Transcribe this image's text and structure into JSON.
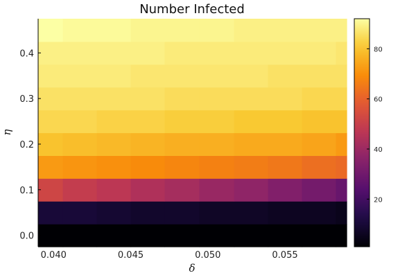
{
  "chart_data": {
    "type": "heatmap",
    "title": "Number Infected",
    "xlabel": "δ",
    "ylabel": "η",
    "x": [
      0.0395,
      0.0417,
      0.0439,
      0.0461,
      0.0483,
      0.0506,
      0.0528,
      0.055,
      0.0572,
      0.0594
    ],
    "y": [
      0.0,
      0.05,
      0.1,
      0.15,
      0.2,
      0.25,
      0.3,
      0.35,
      0.4,
      0.45
    ],
    "xlim": [
      0.039,
      0.059
    ],
    "ylim": [
      -0.025,
      0.475
    ],
    "x_ticks": [
      {
        "value": 0.04,
        "label": "0.040"
      },
      {
        "value": 0.045,
        "label": "0.045"
      },
      {
        "value": 0.05,
        "label": "0.050"
      },
      {
        "value": 0.055,
        "label": "0.055"
      }
    ],
    "y_ticks": [
      {
        "value": 0.0,
        "label": "0.0"
      },
      {
        "value": 0.1,
        "label": "0.1"
      },
      {
        "value": 0.2,
        "label": "0.2"
      },
      {
        "value": 0.3,
        "label": "0.3"
      },
      {
        "value": 0.4,
        "label": "0.4"
      }
    ],
    "z": [
      [
        1,
        1,
        1,
        1,
        1,
        1,
        1,
        1,
        1,
        1
      ],
      [
        10,
        10,
        9,
        8,
        8,
        7,
        7,
        6,
        6,
        5
      ],
      [
        52,
        49,
        47,
        44,
        42,
        39,
        37,
        34,
        31,
        28
      ],
      [
        72,
        71,
        70,
        69,
        68,
        67,
        66,
        65,
        63,
        62
      ],
      [
        80,
        79,
        78,
        77,
        76,
        76,
        75,
        75,
        74,
        72
      ],
      [
        84,
        84,
        83,
        83,
        82,
        82,
        81,
        81,
        80,
        80
      ],
      [
        86,
        86,
        86,
        86,
        85,
        85,
        85,
        85,
        84,
        84
      ],
      [
        88,
        88,
        88,
        87,
        87,
        87,
        87,
        86,
        86,
        86
      ],
      [
        89,
        89,
        89,
        89,
        88,
        88,
        88,
        88,
        88,
        87
      ],
      [
        92,
        91,
        91,
        90,
        90,
        90,
        89,
        89,
        89,
        89
      ]
    ],
    "colorbar": {
      "colormap": "inferno",
      "range": [
        1,
        92
      ],
      "ticks": [
        {
          "value": 20,
          "label": "20"
        },
        {
          "value": 40,
          "label": "40"
        },
        {
          "value": 60,
          "label": "60"
        },
        {
          "value": 80,
          "label": "80"
        }
      ]
    },
    "grid": false,
    "legend": "none"
  }
}
